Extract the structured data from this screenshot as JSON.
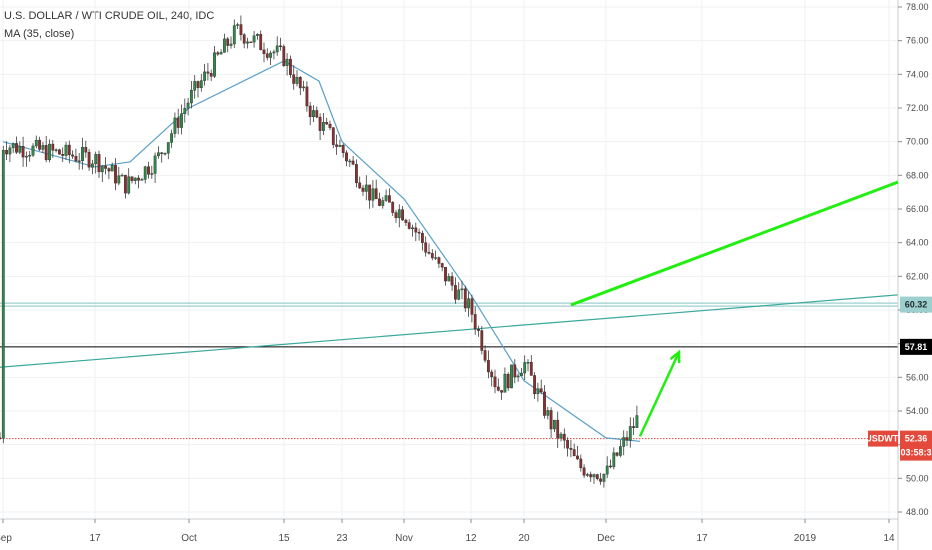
{
  "chart_data": {
    "type": "candlestick",
    "title": "U.S. DOLLAR / WTI CRUDE OIL, 240, IDC",
    "indicator": "MA (35, close)",
    "symbol": "USDWTI",
    "last_price": "52.36",
    "countdown": "03:58:3",
    "ylim": [
      48,
      78
    ],
    "y_ticks": [
      "48.00",
      "50.00",
      "52.00",
      "54.00",
      "56.00",
      "58.00",
      "60.00",
      "62.00",
      "64.00",
      "66.00",
      "68.00",
      "70.00",
      "72.00",
      "74.00",
      "76.00",
      "78.00"
    ],
    "x_ticks": [
      "Sep",
      "17",
      "Oct",
      "15",
      "23",
      "Nov",
      "12",
      "20",
      "Dec",
      "17",
      "2019",
      "14"
    ],
    "price_path": [
      {
        "t": "Sep",
        "v": 69.8
      },
      {
        "t": "17",
        "v": 69.0
      },
      {
        "t": "17",
        "v": 67.4
      },
      {
        "t": "17",
        "v": 69.0
      },
      {
        "t": "Oct",
        "v": 72.5
      },
      {
        "t": "Oct",
        "v": 76.6
      },
      {
        "t": "15",
        "v": 75.0
      },
      {
        "t": "15",
        "v": 71.6
      },
      {
        "t": "23",
        "v": 69.5
      },
      {
        "t": "23",
        "v": 66.6
      },
      {
        "t": "Nov",
        "v": 65.8
      },
      {
        "t": "Nov",
        "v": 62.6
      },
      {
        "t": "12",
        "v": 60.0
      },
      {
        "t": "12",
        "v": 55.3
      },
      {
        "t": "20",
        "v": 56.9
      },
      {
        "t": "20",
        "v": 53.2
      },
      {
        "t": "20",
        "v": 50.7
      },
      {
        "t": "Dec",
        "v": 50.2
      },
      {
        "t": "Dec",
        "v": 53.6
      },
      {
        "t": "Dec",
        "v": 52.4
      }
    ],
    "ma_path": [
      {
        "t": "Sep",
        "v": 70.0
      },
      {
        "t": "17",
        "v": 68.5
      },
      {
        "t": "17",
        "v": 68.8
      },
      {
        "t": "Oct",
        "v": 72.0
      },
      {
        "t": "15",
        "v": 74.8
      },
      {
        "t": "15",
        "v": 73.6
      },
      {
        "t": "23",
        "v": 70.0
      },
      {
        "t": "Nov",
        "v": 66.6
      },
      {
        "t": "12",
        "v": 60.9
      },
      {
        "t": "20",
        "v": 55.8
      },
      {
        "t": "Dec",
        "v": 52.4
      },
      {
        "t": "Dec",
        "v": 52.2
      }
    ],
    "levels": [
      {
        "label": "60.32",
        "value": 60.32,
        "color": "#9ecfcf"
      },
      {
        "label": "57.81",
        "value": 57.81,
        "color": "#000000"
      },
      {
        "label": "USDWTI",
        "value": 52.36,
        "color": "#e34a3c"
      }
    ],
    "trendline": {
      "color": "#3aa89c",
      "from": 56.6,
      "to": 60.9
    },
    "projection": {
      "color": "#22ee11",
      "from": 60.3,
      "to": 67.6
    },
    "arrow": {
      "color": "#22ee11",
      "from": 52.5,
      "to": 57.5
    },
    "colors": {
      "up": "#2f8a4a",
      "down": "#8a2f2f",
      "ma": "#5aa0c8",
      "axis_text": "#4a4a4a",
      "grid": "#eef1f5"
    }
  }
}
